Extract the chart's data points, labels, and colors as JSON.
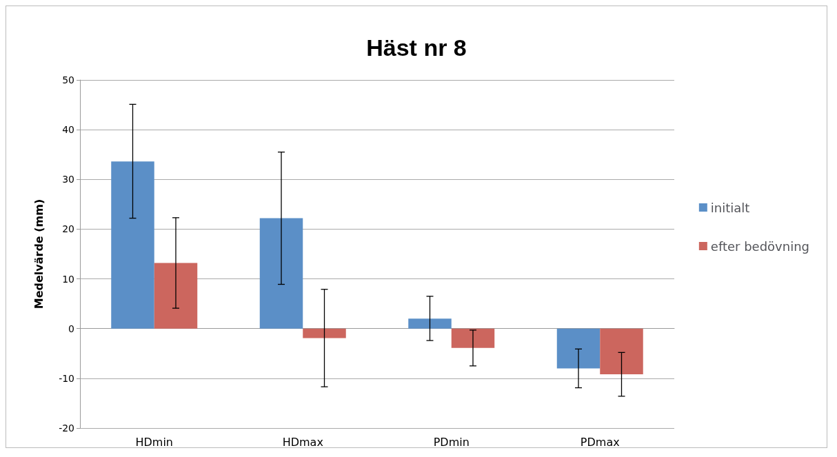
{
  "chart_data": {
    "type": "bar",
    "title": "Häst nr 8",
    "ylabel": "Medelvärde (mm)",
    "categories": [
      "HDmin",
      "HDmax",
      "PDmin",
      "PDmax"
    ],
    "series": [
      {
        "name": "initialt",
        "color": "#5b8fc7",
        "values": [
          33.6,
          22.2,
          2.0,
          -8.0
        ],
        "errors": [
          [
            22.2,
            45.1
          ],
          [
            8.9,
            35.5
          ],
          [
            -2.4,
            6.5
          ],
          [
            -11.9,
            -4.1
          ]
        ]
      },
      {
        "name": "efter bedövning",
        "color": "#cc665e",
        "values": [
          13.2,
          -1.9,
          -3.9,
          -9.2
        ],
        "errors": [
          [
            4.1,
            22.3
          ],
          [
            -11.7,
            7.9
          ],
          [
            -7.5,
            -0.3
          ],
          [
            -13.6,
            -4.8
          ]
        ]
      }
    ],
    "ylim": [
      -20,
      50
    ],
    "yticks": [
      -20,
      -10,
      0,
      10,
      20,
      30,
      40,
      50
    ],
    "grid": "y",
    "legend": "right"
  }
}
